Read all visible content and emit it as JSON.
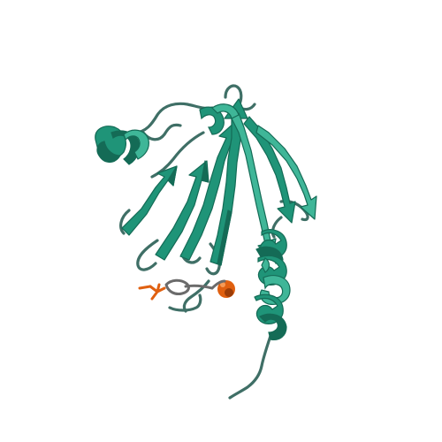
{
  "scene": {
    "subject": "protein-cartoon",
    "background_color": "#ffffff",
    "ribbon_color": "#1f9478",
    "ribbon_dark": "#146b56",
    "ribbon_light": "#3fb698",
    "coil_color": "#3f6f66",
    "ligand_color": "#e06010",
    "ligand_dark": "#9c3d08",
    "ligand_coil_color": "#6b6b6b"
  }
}
